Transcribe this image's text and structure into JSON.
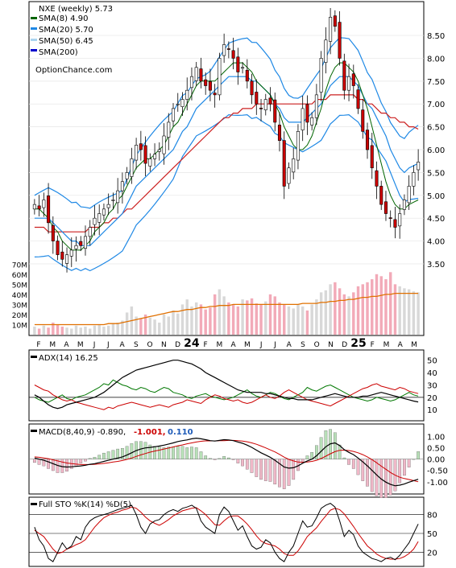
{
  "colors": {
    "sma8": "#006400",
    "sma20": "#1e88e5",
    "sma50": "#aad4f0",
    "sma200": "#0000cc",
    "up": "#ffffff",
    "down": "#cc0000",
    "vol": "#f2aab8",
    "volavg": "#e07000",
    "adx": "#000000",
    "plusdi": "#007700",
    "minusdi": "#cc0000",
    "macd": "#000000",
    "signal": "#cc0000",
    "hist_pos": "#b8e0b8",
    "hist_neg": "#f0b8c8",
    "bb": "#1e88e5",
    "sma50line": "#e8e820",
    "sma200line": "#cc2020"
  },
  "months": [
    "F",
    "M",
    "A",
    "M",
    "J",
    "J",
    "A",
    "S",
    "O",
    "N",
    "D",
    "24",
    "F",
    "M",
    "A",
    "M",
    "J",
    "J",
    "A",
    "S",
    "O",
    "N",
    "D",
    "25",
    "F",
    "M",
    "A",
    "M"
  ],
  "chart_data": [
    {
      "type": "line",
      "title": "NXE (weekly) 5.73",
      "legend": [
        {
          "label": "SMA(8) 4.90",
          "key": "sma8"
        },
        {
          "label": "SMA(20) 5.70",
          "key": "sma20"
        },
        {
          "label": "SMA(50) 6.45",
          "key": "sma50"
        },
        {
          "label": "SMA(200)",
          "key": "sma200"
        }
      ],
      "watermark": "OptionChance.com",
      "ylim": [
        3.2,
        9.1
      ],
      "yticks": [
        "8.50",
        "8.00",
        "7.50",
        "7.00",
        "6.50",
        "6.00",
        "5.50",
        "5.00",
        "4.50",
        "4.00",
        "3.50"
      ],
      "vol_ticks": [
        "70M",
        "60M",
        "50M",
        "40M",
        "30M",
        "20M",
        "10M"
      ],
      "close": [
        4.8,
        4.7,
        4.9,
        4.4,
        4.0,
        3.7,
        3.6,
        3.7,
        3.8,
        3.9,
        3.9,
        4.1,
        4.3,
        4.5,
        4.6,
        4.7,
        4.8,
        4.9,
        5.1,
        5.3,
        5.5,
        5.8,
        6.1,
        6.0,
        5.7,
        5.8,
        5.9,
        6.0,
        6.3,
        6.6,
        6.9,
        7.0,
        7.1,
        7.3,
        7.6,
        7.8,
        7.5,
        7.4,
        7.3,
        7.2,
        8.0,
        8.3,
        8.2,
        8.0,
        7.7,
        7.8,
        7.5,
        7.2,
        7.0,
        6.9,
        7.1,
        7.0,
        6.6,
        6.2,
        5.2,
        5.6,
        5.8,
        6.4,
        6.9,
        6.6,
        6.7,
        7.2,
        8.0,
        8.4,
        8.9,
        8.7,
        8.0,
        7.3,
        7.6,
        7.4,
        6.9,
        6.4,
        6.0,
        5.6,
        5.2,
        4.8,
        4.6,
        4.5,
        4.3,
        4.6,
        4.9,
        5.2,
        5.5,
        5.73
      ],
      "sma8": [
        4.7,
        4.7,
        4.6,
        4.5,
        4.3,
        4.2,
        4.0,
        3.9,
        3.8,
        3.8,
        3.8,
        3.9,
        4.0,
        4.2,
        4.3,
        4.4,
        4.6,
        4.7,
        4.9,
        5.0,
        5.2,
        5.4,
        5.6,
        5.7,
        5.8,
        5.8,
        5.9,
        6.0,
        6.1,
        6.3,
        6.5,
        6.6,
        6.8,
        7.0,
        7.2,
        7.4,
        7.5,
        7.5,
        7.5,
        7.5,
        7.6,
        7.7,
        7.8,
        7.9,
        7.9,
        7.9,
        7.8,
        7.7,
        7.5,
        7.4,
        7.3,
        7.2,
        7.0,
        6.8,
        6.5,
        6.3,
        6.1,
        6.0,
        6.0,
        6.1,
        6.3,
        6.6,
        6.9,
        7.3,
        7.6,
        7.8,
        7.9,
        7.9,
        7.8,
        7.7,
        7.5,
        7.2,
        6.9,
        6.5,
        6.1,
        5.7,
        5.3,
        5.0,
        4.8,
        4.7,
        4.7,
        4.8,
        4.85,
        4.9
      ],
      "sma20": [
        4.5,
        4.5,
        4.5,
        4.5,
        4.4,
        4.3,
        4.2,
        4.1,
        4.0,
        4.0,
        3.9,
        3.9,
        3.9,
        4.0,
        4.1,
        4.2,
        4.3,
        4.4,
        4.5,
        4.6,
        4.8,
        5.0,
        5.2,
        5.3,
        5.4,
        5.5,
        5.6,
        5.7,
        5.8,
        5.9,
        6.0,
        6.2,
        6.4,
        6.5,
        6.7,
        6.9,
        7.0,
        7.1,
        7.2,
        7.3,
        7.4,
        7.5,
        7.6,
        7.6,
        7.6,
        7.6,
        7.6,
        7.5,
        7.5,
        7.4,
        7.3,
        7.2,
        7.0,
        6.9,
        6.7,
        6.6,
        6.6,
        6.6,
        6.6,
        6.7,
        6.8,
        6.9,
        7.0,
        7.2,
        7.4,
        7.5,
        7.6,
        7.6,
        7.6,
        7.5,
        7.4,
        7.2,
        7.0,
        6.9,
        6.7,
        6.5,
        6.3,
        6.0,
        5.8,
        5.6,
        5.5,
        5.6,
        5.65,
        5.7
      ],
      "sma50": [
        4.3,
        4.3,
        4.3,
        4.2,
        4.2,
        4.2,
        4.2,
        4.2,
        4.2,
        4.2,
        4.2,
        4.2,
        4.3,
        4.3,
        4.3,
        4.4,
        4.4,
        4.5,
        4.5,
        4.6,
        4.7,
        4.7,
        4.8,
        4.9,
        5.0,
        5.1,
        5.2,
        5.3,
        5.4,
        5.5,
        5.6,
        5.7,
        5.8,
        5.9,
        6.0,
        6.1,
        6.2,
        6.3,
        6.4,
        6.5,
        6.6,
        6.7,
        6.7,
        6.8,
        6.8,
        6.9,
        6.9,
        6.9,
        7.0,
        7.0,
        7.0,
        7.0,
        7.0,
        7.0,
        7.0,
        7.0,
        7.0,
        7.0,
        7.0,
        7.0,
        7.0,
        7.1,
        7.1,
        7.1,
        7.2,
        7.2,
        7.2,
        7.2,
        7.2,
        7.2,
        7.1,
        7.1,
        7.0,
        7.0,
        6.9,
        6.8,
        6.8,
        6.7,
        6.7,
        6.6,
        6.6,
        6.5,
        6.5,
        6.45
      ],
      "volume": [
        8,
        6,
        9,
        7,
        12,
        10,
        8,
        7,
        6,
        9,
        7,
        8,
        6,
        9,
        10,
        8,
        9,
        11,
        12,
        14,
        22,
        28,
        18,
        16,
        20,
        17,
        15,
        12,
        20,
        18,
        24,
        21,
        30,
        35,
        28,
        32,
        30,
        25,
        27,
        40,
        45,
        38,
        32,
        30,
        28,
        35,
        34,
        36,
        31,
        30,
        33,
        40,
        38,
        32,
        30,
        28,
        26,
        30,
        28,
        24,
        30,
        35,
        42,
        44,
        50,
        52,
        46,
        40,
        38,
        42,
        48,
        50,
        52,
        55,
        60,
        58,
        55,
        62,
        50,
        48,
        46,
        45,
        43,
        42
      ],
      "vol_avg": [
        10,
        10,
        10,
        10,
        10,
        10,
        10,
        10,
        10,
        10,
        10,
        10,
        10,
        10,
        10,
        10,
        11,
        11,
        11,
        12,
        13,
        14,
        15,
        16,
        17,
        18,
        19,
        20,
        21,
        22,
        23,
        23,
        24,
        25,
        25,
        26,
        27,
        27,
        28,
        28,
        29,
        29,
        29,
        30,
        30,
        30,
        30,
        30,
        30,
        30,
        30,
        30,
        30,
        30,
        30,
        30,
        30,
        30,
        31,
        31,
        31,
        31,
        32,
        32,
        33,
        33,
        34,
        34,
        35,
        35,
        36,
        37,
        37,
        38,
        38,
        39,
        40,
        40,
        41,
        41,
        41,
        41,
        41,
        41
      ],
      "vol_ylim": [
        0,
        75
      ]
    },
    {
      "type": "line",
      "title": "ADX(14) 16.25",
      "ylim": [
        3,
        55
      ],
      "yticks": [
        "50",
        "40",
        "30",
        "20",
        "10"
      ],
      "adx": [
        22,
        20,
        17,
        14,
        12,
        11,
        12,
        14,
        15,
        16,
        17,
        18,
        19,
        20,
        22,
        24,
        27,
        30,
        33,
        36,
        38,
        40,
        42,
        43,
        44,
        45,
        46,
        47,
        48,
        49,
        50,
        50,
        49,
        48,
        47,
        45,
        43,
        40,
        38,
        36,
        34,
        32,
        30,
        28,
        26,
        25,
        24,
        24,
        24,
        24,
        23,
        23,
        22,
        21,
        20,
        19,
        19,
        18,
        18,
        18,
        18,
        19,
        20,
        21,
        22,
        23,
        22,
        21,
        20,
        20,
        20,
        21,
        21,
        22,
        23,
        24,
        23,
        22,
        21,
        20,
        19,
        18,
        17,
        16.25
      ],
      "plus_di": [
        20,
        18,
        17,
        16,
        18,
        20,
        22,
        19,
        18,
        20,
        21,
        22,
        24,
        26,
        28,
        31,
        30,
        34,
        32,
        30,
        29,
        27,
        26,
        28,
        27,
        25,
        24,
        26,
        28,
        27,
        24,
        23,
        22,
        20,
        19,
        21,
        22,
        23,
        21,
        20,
        19,
        18,
        19,
        20,
        22,
        24,
        26,
        23,
        21,
        20,
        22,
        24,
        23,
        21,
        19,
        18,
        20,
        22,
        24,
        28,
        26,
        25,
        27,
        29,
        30,
        28,
        26,
        24,
        22,
        20,
        19,
        18,
        17,
        18,
        20,
        19,
        18,
        17,
        18,
        20,
        22,
        24,
        22,
        21
      ],
      "minus_di": [
        30,
        28,
        26,
        25,
        22,
        20,
        18,
        17,
        18,
        16,
        15,
        14,
        13,
        12,
        11,
        10,
        12,
        11,
        13,
        14,
        15,
        16,
        15,
        14,
        13,
        12,
        13,
        14,
        13,
        12,
        14,
        15,
        16,
        18,
        17,
        16,
        15,
        18,
        20,
        22,
        21,
        19,
        18,
        17,
        18,
        16,
        15,
        16,
        18,
        20,
        22,
        20,
        19,
        21,
        24,
        26,
        24,
        22,
        20,
        18,
        17,
        16,
        15,
        14,
        13,
        15,
        17,
        19,
        21,
        23,
        25,
        27,
        28,
        30,
        31,
        29,
        28,
        27,
        26,
        28,
        27,
        25,
        24,
        23
      ]
    },
    {
      "type": "line",
      "title": "MACD(8,40,9) -0.890,",
      "signal_label": "-1.001,",
      "hist_label": "0.110",
      "ylim": [
        -1.4,
        1.2
      ],
      "yticks": [
        "1.00",
        "0.50",
        "0.00",
        "-0.50",
        "-1.00"
      ],
      "macd": [
        0.05,
        0.0,
        -0.05,
        -0.12,
        -0.2,
        -0.28,
        -0.33,
        -0.35,
        -0.34,
        -0.32,
        -0.3,
        -0.27,
        -0.23,
        -0.2,
        -0.15,
        -0.1,
        -0.05,
        0.0,
        0.05,
        0.1,
        0.18,
        0.28,
        0.38,
        0.45,
        0.5,
        0.52,
        0.55,
        0.58,
        0.62,
        0.67,
        0.72,
        0.78,
        0.82,
        0.85,
        0.9,
        0.93,
        0.9,
        0.86,
        0.82,
        0.8,
        0.83,
        0.86,
        0.85,
        0.82,
        0.76,
        0.7,
        0.62,
        0.52,
        0.4,
        0.28,
        0.18,
        0.08,
        -0.05,
        -0.2,
        -0.35,
        -0.4,
        -0.38,
        -0.3,
        -0.18,
        -0.08,
        0.0,
        0.15,
        0.35,
        0.55,
        0.68,
        0.72,
        0.6,
        0.42,
        0.3,
        0.2,
        0.05,
        -0.12,
        -0.3,
        -0.5,
        -0.7,
        -0.88,
        -1.02,
        -1.12,
        -1.18,
        -1.15,
        -1.1,
        -1.02,
        -0.95,
        -0.89
      ],
      "signal": [
        0.1,
        0.08,
        0.05,
        0.02,
        -0.03,
        -0.08,
        -0.13,
        -0.17,
        -0.2,
        -0.22,
        -0.24,
        -0.24,
        -0.24,
        -0.23,
        -0.21,
        -0.19,
        -0.16,
        -0.13,
        -0.1,
        -0.06,
        -0.01,
        0.05,
        0.12,
        0.19,
        0.25,
        0.31,
        0.36,
        0.4,
        0.45,
        0.49,
        0.54,
        0.59,
        0.63,
        0.68,
        0.72,
        0.76,
        0.79,
        0.81,
        0.81,
        0.81,
        0.82,
        0.82,
        0.83,
        0.83,
        0.82,
        0.8,
        0.77,
        0.72,
        0.66,
        0.58,
        0.5,
        0.41,
        0.32,
        0.21,
        0.09,
        -0.01,
        -0.08,
        -0.13,
        -0.14,
        -0.13,
        -0.1,
        -0.05,
        0.03,
        0.13,
        0.24,
        0.33,
        0.39,
        0.4,
        0.38,
        0.34,
        0.28,
        0.2,
        0.1,
        -0.02,
        -0.16,
        -0.31,
        -0.45,
        -0.59,
        -0.71,
        -0.8,
        -0.86,
        -0.9,
        -0.95,
        -1.001
      ]
    },
    {
      "type": "line",
      "title": "Full STO %K(14) %D(5)",
      "ylim": [
        0,
        100
      ],
      "yticks": [
        "80",
        "50",
        "20"
      ],
      "k": [
        60,
        40,
        30,
        10,
        5,
        20,
        35,
        25,
        30,
        45,
        40,
        60,
        70,
        75,
        78,
        80,
        82,
        85,
        88,
        90,
        92,
        95,
        80,
        60,
        50,
        65,
        70,
        72,
        80,
        85,
        88,
        85,
        90,
        92,
        95,
        90,
        70,
        60,
        55,
        50,
        80,
        92,
        85,
        70,
        55,
        62,
        45,
        30,
        25,
        28,
        40,
        35,
        20,
        10,
        5,
        20,
        30,
        50,
        70,
        60,
        62,
        75,
        90,
        95,
        98,
        92,
        70,
        45,
        55,
        48,
        30,
        20,
        15,
        10,
        8,
        5,
        10,
        12,
        8,
        15,
        25,
        35,
        50,
        65
      ],
      "d": [
        55,
        50,
        45,
        35,
        25,
        18,
        20,
        25,
        28,
        32,
        35,
        40,
        50,
        60,
        68,
        75,
        79,
        82,
        84,
        87,
        89,
        92,
        90,
        84,
        76,
        70,
        66,
        63,
        67,
        72,
        78,
        82,
        86,
        88,
        90,
        91,
        86,
        80,
        72,
        64,
        63,
        70,
        76,
        78,
        78,
        72,
        65,
        56,
        46,
        38,
        34,
        32,
        30,
        25,
        18,
        15,
        15,
        22,
        33,
        45,
        52,
        59,
        69,
        78,
        87,
        90,
        88,
        81,
        71,
        61,
        50,
        40,
        30,
        24,
        17,
        13,
        10,
        9,
        9,
        10,
        13,
        18,
        25,
        37
      ]
    }
  ]
}
